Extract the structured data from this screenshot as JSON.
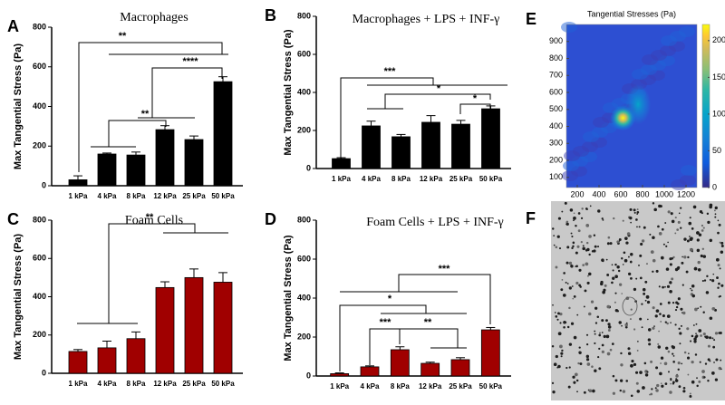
{
  "chart_data": [
    {
      "type": "bar",
      "panel": "A",
      "title": "Macrophages",
      "ylabel": "Max Tangential Stress (Pa)",
      "categories": [
        "1 kPa",
        "4 kPa",
        "8 kPa",
        "12 kPa",
        "25 kPa",
        "50 kPa"
      ],
      "values": [
        30,
        160,
        155,
        283,
        233,
        525
      ],
      "errors": [
        20,
        5,
        15,
        20,
        18,
        25
      ],
      "color": "#000000",
      "ylim": [
        0,
        800
      ],
      "yticks": [
        0,
        200,
        400,
        600,
        800
      ],
      "annotations": [
        "**",
        "****",
        "**"
      ]
    },
    {
      "type": "bar",
      "panel": "B",
      "title": "Macrophages + LPS + INF-γ",
      "ylabel": "Max Tangential Stress (Pa)",
      "categories": [
        "1 kPa",
        "4 kPa",
        "8 kPa",
        "12 kPa",
        "25 kPa",
        "50 kPa"
      ],
      "values": [
        52,
        224,
        167,
        243,
        233,
        314
      ],
      "errors": [
        5,
        25,
        12,
        35,
        20,
        15
      ],
      "color": "#000000",
      "ylim": [
        0,
        800
      ],
      "yticks": [
        0,
        200,
        400,
        600,
        800
      ],
      "annotations": [
        "***",
        "*",
        "*"
      ]
    },
    {
      "type": "bar",
      "panel": "C",
      "title": "Foam Cells",
      "ylabel": "Max Tangential Stress (Pa)",
      "categories": [
        "1 kPa",
        "4 kPa",
        "8 kPa",
        "12 kPa",
        "25 kPa",
        "50 kPa"
      ],
      "values": [
        114,
        133,
        181,
        448,
        500,
        476
      ],
      "errors": [
        10,
        35,
        35,
        30,
        45,
        50
      ],
      "color": "#a00000",
      "ylim": [
        0,
        800
      ],
      "yticks": [
        0,
        200,
        400,
        600,
        800
      ],
      "annotations": [
        "**"
      ]
    },
    {
      "type": "bar",
      "panel": "D",
      "title": "Foam Cells + LPS + INF-γ",
      "ylabel": "Max Tangential Stress (Pa)",
      "categories": [
        "1 kPa",
        "4 kPa",
        "8 kPa",
        "12 kPa",
        "25 kPa",
        "50 kPa"
      ],
      "values": [
        12,
        47,
        135,
        65,
        84,
        237
      ],
      "errors": [
        4,
        5,
        15,
        6,
        10,
        12
      ],
      "color": "#a00000",
      "ylim": [
        0,
        800
      ],
      "yticks": [
        0,
        200,
        400,
        600,
        800
      ],
      "annotations": [
        "***",
        "*",
        "***",
        "**"
      ]
    },
    {
      "type": "heatmap",
      "panel": "E",
      "title": "Tangential Stresses (Pa)",
      "xlim": [
        100,
        1300
      ],
      "xticks": [
        200,
        400,
        600,
        800,
        1000,
        1200
      ],
      "ylim": [
        40,
        1000
      ],
      "yticks": [
        100,
        200,
        300,
        400,
        500,
        600,
        700,
        800,
        900
      ],
      "clim": [
        0,
        222
      ],
      "cticks": [
        0,
        50,
        100,
        150,
        200
      ]
    },
    {
      "type": "image",
      "panel": "F"
    }
  ]
}
